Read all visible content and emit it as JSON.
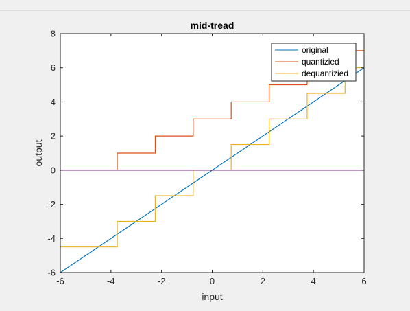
{
  "chart_data": {
    "type": "line",
    "title": "mid-tread",
    "xlabel": "input",
    "ylabel": "output",
    "xlim": [
      -6,
      6
    ],
    "ylim": [
      -6,
      8
    ],
    "xticks": [
      -6,
      -4,
      -2,
      0,
      2,
      4,
      6
    ],
    "yticks": [
      -6,
      -4,
      -2,
      0,
      2,
      4,
      6,
      8
    ],
    "xtick_labels": [
      "-6",
      "-4",
      "-2",
      "0",
      "2",
      "4",
      "6"
    ],
    "ytick_labels": [
      "-6",
      "-4",
      "-2",
      "0",
      "2",
      "4",
      "6",
      "8"
    ],
    "grid": false,
    "legend_position": "top-right",
    "series": [
      {
        "name": "original",
        "color": "#0072bd",
        "x": [
          -6,
          6
        ],
        "y": [
          -6,
          6
        ]
      },
      {
        "name": "quantizied",
        "color": "#d95319",
        "x": [
          -3.75,
          -3.75,
          -2.25,
          -2.25,
          -0.75,
          -0.75,
          0.75,
          0.75,
          2.25,
          2.25,
          3.75,
          3.75,
          5.25,
          5.25,
          6
        ],
        "y": [
          0,
          1,
          1,
          2,
          2,
          3,
          3,
          4,
          4,
          5,
          5,
          6,
          6,
          7,
          7
        ]
      },
      {
        "name": "dequantizied",
        "color": "#edb120",
        "x": [
          -6,
          -3.75,
          -3.75,
          -2.25,
          -2.25,
          -0.75,
          -0.75,
          0.75,
          0.75,
          2.25,
          2.25,
          3.75,
          3.75,
          5.25,
          5.25,
          6
        ],
        "y": [
          -4.5,
          -4.5,
          -3,
          -3,
          -1.5,
          -1.5,
          0,
          0,
          1.5,
          1.5,
          3,
          3,
          4.5,
          4.5,
          6,
          6
        ]
      },
      {
        "color": "#7e2f8e",
        "x": [
          -6,
          6
        ],
        "y": [
          0,
          0
        ]
      }
    ]
  }
}
